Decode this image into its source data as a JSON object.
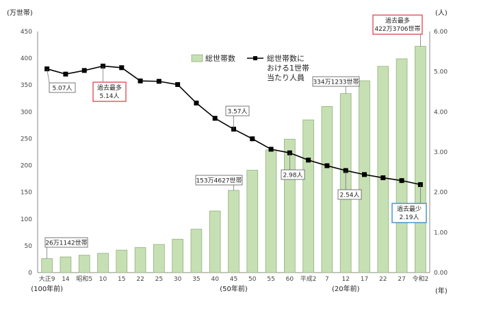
{
  "chart_data": {
    "type": "bar+line",
    "categories": [
      "大正9",
      "14",
      "昭和5",
      "10",
      "15",
      "22",
      "25",
      "30",
      "35",
      "40",
      "45",
      "50",
      "55",
      "60",
      "平成2",
      "7",
      "12",
      "17",
      "22",
      "27",
      "令和2"
    ],
    "sub_labels": [
      {
        "category": "大正9",
        "text": "(100年前)"
      },
      {
        "category": "45",
        "text": "(50年前)"
      },
      {
        "category": "12",
        "text": "(20年前)"
      }
    ],
    "x_unit": "(年)",
    "left_axis": {
      "unit": "(万世帯)",
      "ylim": [
        0,
        450
      ],
      "ticks": [
        0,
        50,
        100,
        150,
        200,
        250,
        300,
        350,
        400,
        450
      ]
    },
    "right_axis": {
      "unit": "(人)",
      "ylim": [
        0,
        6
      ],
      "ticks": [
        "0.00",
        "1.00",
        "2.00",
        "3.00",
        "4.00",
        "5.00",
        "6.00"
      ]
    },
    "series": [
      {
        "name": "総世帯数",
        "type": "bar",
        "axis": "left",
        "color": "#c6e0b4",
        "edge": "#8fb07a",
        "values": [
          26.1,
          29.3,
          32.4,
          35.9,
          42.0,
          46.7,
          52.5,
          62.3,
          81.0,
          115.0,
          153.5,
          191.0,
          229.0,
          249.0,
          285.0,
          310.0,
          334.1,
          358.0,
          385.0,
          399.0,
          422.4
        ]
      },
      {
        "name": "総世帯数における1世帯当たり人員",
        "type": "line",
        "axis": "right",
        "color": "#000000",
        "values": [
          5.07,
          4.94,
          5.03,
          5.14,
          5.1,
          4.77,
          4.76,
          4.68,
          4.22,
          3.84,
          3.57,
          3.33,
          3.07,
          2.98,
          2.8,
          2.66,
          2.54,
          2.44,
          2.36,
          2.29,
          2.19
        ]
      }
    ],
    "legend": [
      {
        "label": "総世帯数",
        "kind": "bar"
      },
      {
        "label_lines": [
          "総世帯数に",
          "おける1世帯",
          "当たり人員"
        ],
        "kind": "line"
      }
    ],
    "annotations": [
      {
        "text": "5.07人",
        "style": "plain"
      },
      {
        "text_lines": [
          "過去最多",
          "5.14人"
        ],
        "style": "red"
      },
      {
        "text": "3.57人",
        "style": "plain"
      },
      {
        "text": "2.98人",
        "style": "plain"
      },
      {
        "text": "2.54人",
        "style": "plain"
      },
      {
        "text_lines": [
          "過去最少",
          "2.19人"
        ],
        "style": "blue"
      },
      {
        "text": "26万1142世帯",
        "style": "plain"
      },
      {
        "text": "153万4627世帯",
        "style": "plain"
      },
      {
        "text": "334万1233世帯",
        "style": "plain"
      },
      {
        "text_lines": [
          "過去最多",
          "422万3706世帯"
        ],
        "style": "red"
      }
    ],
    "colors": {
      "red_box": "#e0505a",
      "blue_box": "#3f8fc4",
      "grid": "#d9d9d9"
    }
  }
}
